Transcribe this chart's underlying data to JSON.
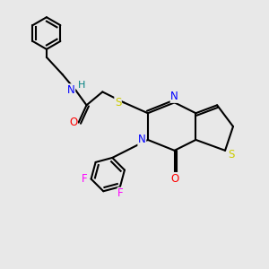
{
  "background_color": "#e8e8e8",
  "bond_color": "#000000",
  "atom_colors": {
    "N": "#0000ff",
    "O": "#ff0000",
    "S": "#cccc00",
    "F": "#ff00ff",
    "H": "#008080"
  },
  "figsize": [
    3.0,
    3.0
  ],
  "dpi": 100
}
